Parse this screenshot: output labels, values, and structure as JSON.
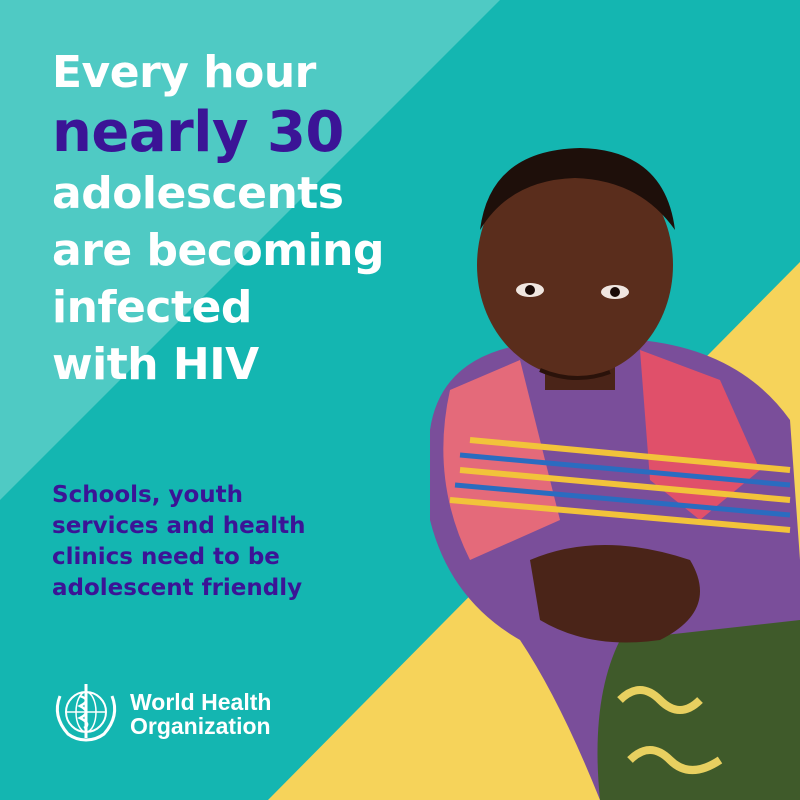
{
  "headline": {
    "line1": "Every hour",
    "accent": "nearly 30",
    "line3": "adolescents",
    "line4": "are becoming",
    "line5": "infected",
    "line6": "with HIV"
  },
  "subtext": {
    "line1": "Schools, youth",
    "line2": "services and health",
    "line3": "clinics need to be",
    "line4": "adolescent friendly"
  },
  "logo": {
    "line1": "World Health",
    "line2": "Organization",
    "icon": "who-emblem-icon"
  },
  "colors": {
    "background": "#14b6b1",
    "light_band": "#4fcac4",
    "accent_purple": "#3b1496",
    "yellow": "#f6d35a"
  }
}
